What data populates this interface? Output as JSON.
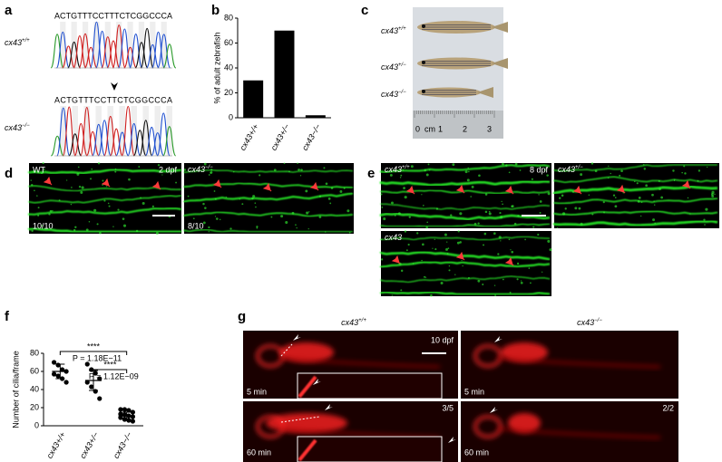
{
  "panel_labels": [
    "a",
    "b",
    "c",
    "d",
    "e",
    "f",
    "g"
  ],
  "panel_a": {
    "sequences": [
      "ACTGTTTCCTTTCTCGGCCCA",
      "ACTGTTTCCTTCTCGGCCCA"
    ],
    "genotypes": [
      {
        "gene": "cx43",
        "allele": "+/+"
      },
      {
        "gene": "cx43",
        "allele": "−/−"
      }
    ]
  },
  "chart_data": [
    {
      "type": "bar",
      "ylabel": "% of adult zebrafish",
      "categories": [
        "cx43+/+",
        "cx43+/−",
        "cx43−/−"
      ],
      "values": [
        30,
        70,
        2
      ],
      "color": "#000000",
      "ylim": [
        0,
        80
      ],
      "yticks": [
        0,
        20,
        40,
        60,
        80
      ]
    },
    {
      "type": "scatter",
      "ylabel": "Number of cilia/frame",
      "categories": [
        "cx43+/+",
        "cx43+/−",
        "cx43−/−"
      ],
      "series": [
        {
          "name": "cx43+/+",
          "color": "#000000",
          "values": [
            70,
            67,
            62,
            60,
            57,
            55,
            52,
            48
          ],
          "mean": 60,
          "sd": 8
        },
        {
          "name": "cx43+/−",
          "color": "#000000",
          "values": [
            68,
            62,
            58,
            52,
            48,
            43,
            38,
            30
          ],
          "mean": 50,
          "sd": 11
        },
        {
          "name": "cx43−/−",
          "color": "#000000",
          "values": [
            18,
            18,
            17,
            15,
            13,
            12,
            11,
            10,
            9,
            7,
            6,
            5
          ],
          "mean": 11,
          "sd": 4
        }
      ],
      "ylim": [
        0,
        80
      ],
      "yticks": [
        0,
        20,
        40,
        60,
        80
      ],
      "annotations": [
        "****",
        "P = 1.18E−11",
        "****",
        "P = 1.12E−09"
      ]
    }
  ],
  "panel_c": {
    "genotypes": [
      {
        "gene": "cx43",
        "allele": "+/+"
      },
      {
        "gene": "cx43",
        "allele": "+/−"
      },
      {
        "gene": "cx43",
        "allele": "−/−"
      }
    ],
    "ruler": [
      "0",
      "cm",
      "1",
      "2",
      "3"
    ]
  },
  "panel_d": {
    "wt": "WT",
    "stage": "2 dpf",
    "count_wt": "10/10",
    "mutant": {
      "gene": "cx43",
      "allele": "−/−"
    },
    "count_mut": "8/10"
  },
  "panel_e": {
    "genotypes": [
      {
        "gene": "cx43",
        "allele": "+/+"
      },
      {
        "gene": "cx43",
        "allele": "+/−"
      },
      {
        "gene": "cx43"
      }
    ],
    "stage": "8 dpf"
  },
  "panel_g": {
    "genotypes": [
      {
        "gene": "cx43",
        "allele": "+/+"
      },
      {
        "gene": "cx43",
        "allele": "−/−"
      }
    ],
    "stage": "10 dpf",
    "times": [
      "5 min",
      "5 min",
      "60 min",
      "60 min"
    ],
    "counts": [
      "3/5",
      "2/2"
    ]
  }
}
